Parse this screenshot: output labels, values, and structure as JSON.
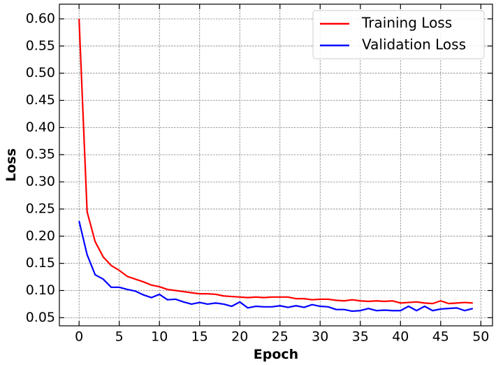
{
  "chart_data": {
    "type": "line",
    "x_label": "Epoch",
    "y_label": "Loss",
    "x": [
      0,
      1,
      2,
      3,
      4,
      5,
      6,
      7,
      8,
      9,
      10,
      11,
      12,
      13,
      14,
      15,
      16,
      17,
      18,
      19,
      20,
      21,
      22,
      23,
      24,
      25,
      26,
      27,
      28,
      29,
      30,
      31,
      32,
      33,
      34,
      35,
      36,
      37,
      38,
      39,
      40,
      41,
      42,
      43,
      44,
      45,
      46,
      47,
      48,
      49
    ],
    "series": [
      {
        "name": "Training Loss",
        "color": "#ff0000",
        "values": [
          0.6,
          0.245,
          0.19,
          0.162,
          0.146,
          0.137,
          0.126,
          0.121,
          0.116,
          0.11,
          0.107,
          0.102,
          0.1,
          0.098,
          0.096,
          0.094,
          0.094,
          0.093,
          0.09,
          0.089,
          0.088,
          0.087,
          0.088,
          0.087,
          0.088,
          0.088,
          0.088,
          0.085,
          0.085,
          0.083,
          0.084,
          0.084,
          0.082,
          0.081,
          0.083,
          0.081,
          0.08,
          0.081,
          0.08,
          0.081,
          0.077,
          0.078,
          0.079,
          0.077,
          0.076,
          0.081,
          0.076,
          0.077,
          0.078,
          0.077
        ]
      },
      {
        "name": "Validation Loss",
        "color": "#0000ff",
        "values": [
          0.228,
          0.166,
          0.129,
          0.121,
          0.106,
          0.106,
          0.102,
          0.099,
          0.092,
          0.087,
          0.093,
          0.083,
          0.084,
          0.079,
          0.075,
          0.078,
          0.075,
          0.077,
          0.075,
          0.071,
          0.079,
          0.068,
          0.071,
          0.07,
          0.07,
          0.072,
          0.069,
          0.072,
          0.069,
          0.074,
          0.071,
          0.07,
          0.065,
          0.065,
          0.062,
          0.063,
          0.067,
          0.063,
          0.064,
          0.063,
          0.063,
          0.071,
          0.063,
          0.071,
          0.063,
          0.066,
          0.067,
          0.068,
          0.063,
          0.067
        ]
      }
    ],
    "xlim": [
      -2.45,
      51.45
    ],
    "ylim": [
      0.035,
      0.627
    ],
    "xticks": [
      0,
      5,
      10,
      15,
      20,
      25,
      30,
      35,
      40,
      45,
      50
    ],
    "yticks": [
      0.05,
      {
        "value": 0.1,
        "label": "0.10"
      },
      0.15,
      {
        "value": 0.2,
        "label": "0.20"
      },
      0.25,
      {
        "value": 0.3,
        "label": "0.30"
      },
      0.35,
      {
        "value": 0.4,
        "label": "0.40"
      },
      0.45,
      {
        "value": 0.5,
        "label": "0.50"
      },
      0.55,
      {
        "value": 0.6,
        "label": "0.60"
      }
    ],
    "grid": true,
    "legend": "upper right"
  }
}
